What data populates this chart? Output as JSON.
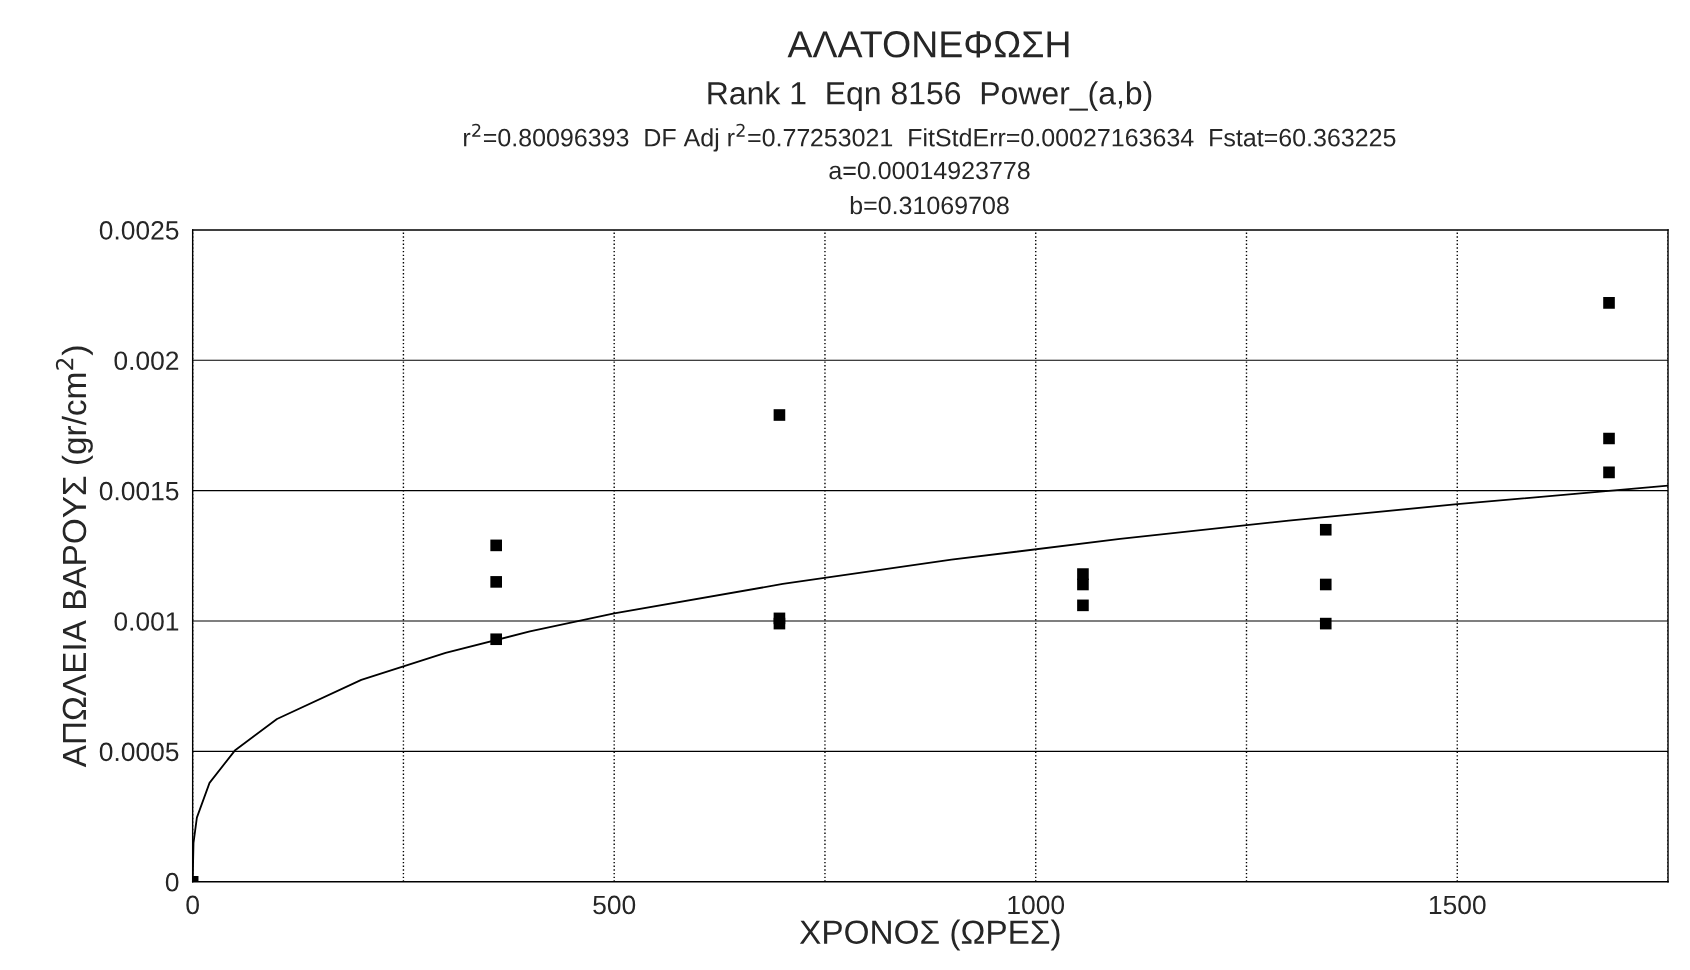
{
  "chart_data": {
    "type": "scatter",
    "title": "ΑΛΑΤΟΝΕΦΩΣΗ",
    "subtitle": "Rank 1  Eqn 8156  Power_(a,b)",
    "xlabel": "ΧΡΟΝΟΣ (ΩΡΕΣ)",
    "ylabel": "ΑΠΩΛΕΙΑ ΒΑΡΟΥΣ (gr/cm$^{2}$)",
    "annotations": [
      "r$^{2}$=0.80096393  DF Adj r$^{2}$=0.77253021  FitStdErr=0.00027163634  Fstat=60.363225",
      "a=0.00014923778",
      "b=0.31069708"
    ],
    "series": [
      {
        "color": "#000000",
        "marker": "square",
        "x": [
          0,
          360,
          360,
          360,
          696,
          696,
          696,
          1056,
          1056,
          1056,
          1344,
          1344,
          1344,
          1680,
          1680,
          1680
        ],
        "values": [
          0,
          0.00129,
          0.00115,
          0.00093,
          0.00179,
          0.00101,
          0.00099,
          0.00118,
          0.00114,
          0.00106,
          0.00135,
          0.00114,
          0.00099,
          0.00222,
          0.0017,
          0.00157
        ]
      },
      {
        "type": "line",
        "color": "#000000",
        "marker": "none",
        "x": [
          0,
          1,
          5,
          20,
          50,
          100,
          200,
          300,
          400,
          500,
          700,
          900,
          1100,
          1300,
          1500,
          1750
        ],
        "values": [
          0,
          0.000149,
          0.000246,
          0.000379,
          0.000503,
          0.000624,
          0.000774,
          0.000878,
          0.00096,
          0.001029,
          0.001142,
          0.001235,
          0.001315,
          0.001385,
          0.001448,
          0.001519
        ]
      }
    ],
    "xlim": [
      0,
      1750
    ],
    "ylim": [
      0,
      0.0025
    ],
    "xticks": [
      0,
      {
        "value": 250,
        "label": null
      },
      500,
      {
        "value": 750,
        "label": null
      },
      1000,
      {
        "value": 1250,
        "label": null
      },
      1500,
      {
        "value": 1750,
        "label": null
      }
    ],
    "yticks": [
      0,
      0.0005,
      0.001,
      0.0015,
      0.002,
      0.0025
    ],
    "grid": true,
    "legend": false
  }
}
